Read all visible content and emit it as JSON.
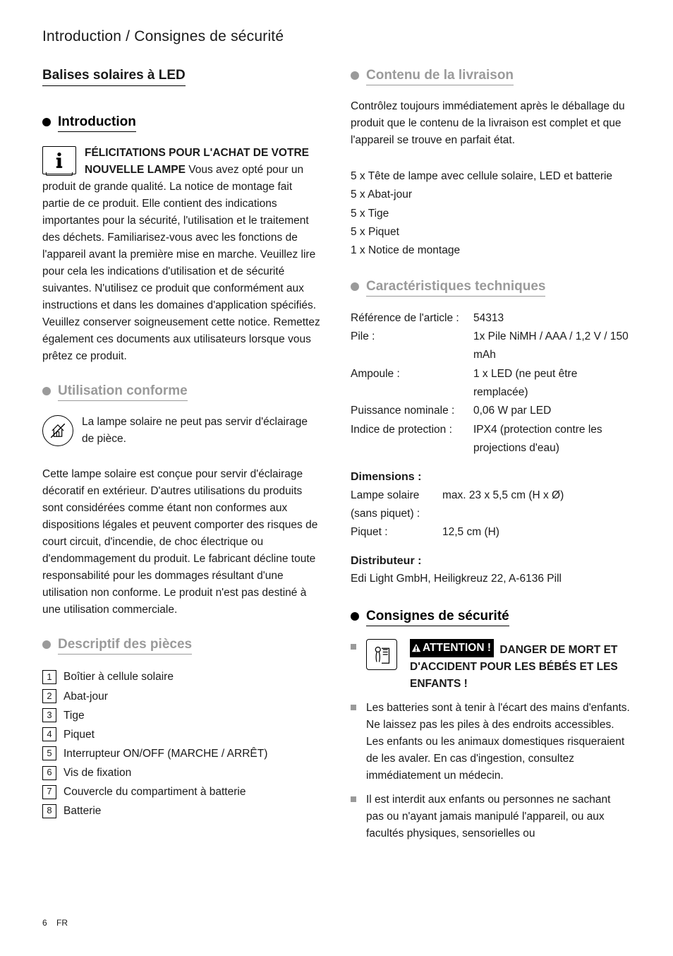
{
  "breadcrumb": "Introduction / Consignes de sécurité",
  "product_title": "Balises solaires à LED",
  "intro": {
    "heading": "Introduction",
    "congrats": "FÉLICITATIONS POUR L'ACHAT DE VOTRE NOUVELLE LAMPE",
    "body": "Vous avez opté pour un produit de grande qualité. La notice de montage fait partie de ce produit. Elle contient des indications importantes pour la sécurité, l'utilisation et le traitement des déchets. Familiarisez-vous avec les fonctions de l'appareil avant la première mise en marche. Veuillez lire pour cela les indications d'utilisation et de sécurité suivantes. N'utilisez ce produit que conformément aux instructions et dans les domaines d'application spécifiés. Veuillez conserver soigneusement cette notice. Remettez également ces documents aux utilisateurs lorsque vous prêtez ce produit."
  },
  "usage": {
    "heading": "Utilisation conforme",
    "note": "La lampe solaire ne peut pas servir d'éclairage de pièce.",
    "body": "Cette lampe solaire est conçue pour servir d'éclairage décoratif en extérieur. D'autres utilisations du produits sont considérées comme étant non conformes aux dispositions légales et peuvent comporter des risques de court circuit, d'incendie, de choc électrique ou d'endommagement du produit. Le fabricant décline toute responsabilité pour les dommages résultant d'une utilisation non conforme. Le produit n'est pas destiné à une utilisation commerciale."
  },
  "parts": {
    "heading": "Descriptif des pièces",
    "items": [
      "Boîtier à cellule solaire",
      "Abat-jour",
      "Tige",
      "Piquet",
      "Interrupteur ON/OFF (MARCHE / ARRÊT)",
      "Vis de fixation",
      "Couvercle du compartiment à batterie",
      "Batterie"
    ]
  },
  "delivery": {
    "heading": "Contenu de la livraison",
    "intro": "Contrôlez toujours immédiatement après le déballage du produit que le contenu de la livraison est complet et que l'appareil se trouve en parfait état.",
    "items": [
      "5 x Tête de lampe avec cellule solaire, LED et batterie",
      "5 x Abat-jour",
      "5 x Tige",
      "5 x Piquet",
      "1  x Notice de montage"
    ]
  },
  "specs": {
    "heading": "Caractéristiques techniques",
    "rows": [
      {
        "label": "Référence de l'article :",
        "value": "54313"
      },
      {
        "label": "Pile :",
        "value": "1x Pile NiMH / AAA / 1,2 V / 150 mAh"
      },
      {
        "label": "Ampoule :",
        "value": "1 x LED (ne peut être remplacée)"
      },
      {
        "label": "Puissance nominale :",
        "value": "0,06 W par LED"
      },
      {
        "label": "Indice de protection :",
        "value": "IPX4 (protection contre les projections d'eau)"
      }
    ],
    "dimensions_head": "Dimensions :",
    "dim_rows": [
      {
        "label": "Lampe solaire (sans piquet) :",
        "value": "max. 23 x 5,5 cm (H x Ø)"
      },
      {
        "label": "Piquet :",
        "value": "12,5 cm (H)"
      }
    ],
    "distributor_head": "Distributeur :",
    "distributor": "Edi Light GmbH, Heiligkreuz 22, A-6136 Pill"
  },
  "safety": {
    "heading": "Consignes de sécurité",
    "warn_label": "ATTENTION !",
    "warn_text": "DANGER DE MORT ET D'ACCIDENT POUR LES BÉBÉS ET LES ENFANTS !",
    "items": [
      "Les batteries sont à tenir à l'écart des mains d'enfants. Ne laissez pas les piles à des endroits accessibles. Les enfants ou les animaux domestiques risqueraient de les avaler. En cas d'ingestion, consultez immédiatement un médecin.",
      "Il est interdit aux enfants ou personnes ne sachant pas ou n'ayant jamais manipulé l'appareil, ou aux facultés physiques, sensorielles ou"
    ]
  },
  "footer": {
    "page": "6",
    "lang": "FR"
  },
  "colors": {
    "grey": "#9a9a9a",
    "black": "#000000"
  }
}
